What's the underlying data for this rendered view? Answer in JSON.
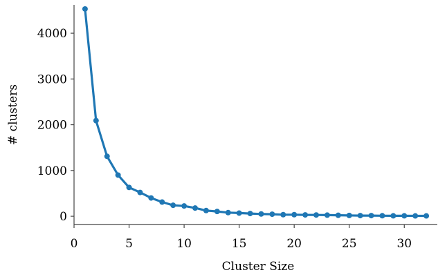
{
  "chart_data": {
    "type": "line",
    "title": "",
    "xlabel": "Cluster Size",
    "ylabel": "# clusters",
    "xlim": [
      0,
      33
    ],
    "ylim": [
      -180,
      4620
    ],
    "xticks": [
      0,
      5,
      10,
      15,
      20,
      25,
      30
    ],
    "yticks": [
      0,
      1000,
      2000,
      3000,
      4000
    ],
    "grid": false,
    "line_color": "#1f77b4",
    "x": [
      1,
      2,
      3,
      4,
      5,
      6,
      7,
      8,
      9,
      10,
      11,
      12,
      13,
      14,
      15,
      16,
      17,
      18,
      19,
      20,
      21,
      22,
      23,
      24,
      25,
      26,
      27,
      28,
      29,
      30,
      31,
      32
    ],
    "y": [
      4530,
      2090,
      1310,
      900,
      630,
      520,
      400,
      310,
      240,
      225,
      180,
      125,
      105,
      80,
      70,
      60,
      50,
      45,
      35,
      35,
      30,
      28,
      25,
      22,
      18,
      15,
      15,
      12,
      10,
      10,
      8,
      8
    ]
  }
}
